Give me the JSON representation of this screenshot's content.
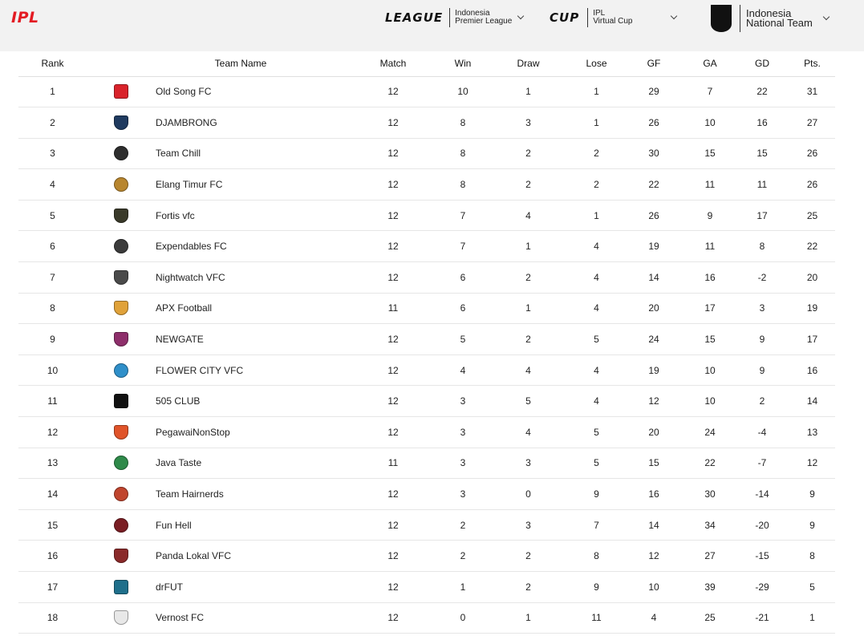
{
  "header": {
    "logo": "IPL",
    "league": {
      "word": "LEAGUE",
      "line1": "Indonesia",
      "line2": "Premier League"
    },
    "cup": {
      "word": "CUP",
      "line1": "IPL",
      "line2": "Virtual Cup"
    },
    "national": {
      "line1": "Indonesia",
      "line2": "National Team"
    }
  },
  "table": {
    "columns": [
      "Rank",
      "Team Name",
      "Match",
      "Win",
      "Draw",
      "Lose",
      "GF",
      "GA",
      "GD",
      "Pts."
    ],
    "rows": [
      {
        "rank": "1",
        "team": "Old Song FC",
        "match": "12",
        "win": "10",
        "draw": "1",
        "lose": "1",
        "gf": "29",
        "ga": "7",
        "gd": "22",
        "pts": "31",
        "crest_color": "#d9232b",
        "crest_shape": "sq"
      },
      {
        "rank": "2",
        "team": "DJAMBRONG",
        "match": "12",
        "win": "8",
        "draw": "3",
        "lose": "1",
        "gf": "26",
        "ga": "10",
        "gd": "16",
        "pts": "27",
        "crest_color": "#1f3a5f",
        "crest_shape": "shield"
      },
      {
        "rank": "3",
        "team": "Team Chill",
        "match": "12",
        "win": "8",
        "draw": "2",
        "lose": "2",
        "gf": "30",
        "ga": "15",
        "gd": "15",
        "pts": "26",
        "crest_color": "#2e2e2e",
        "crest_shape": "circle"
      },
      {
        "rank": "4",
        "team": "Elang Timur FC",
        "match": "12",
        "win": "8",
        "draw": "2",
        "lose": "2",
        "gf": "22",
        "ga": "11",
        "gd": "11",
        "pts": "26",
        "crest_color": "#b8862f",
        "crest_shape": "circle"
      },
      {
        "rank": "5",
        "team": "Fortis vfc",
        "match": "12",
        "win": "7",
        "draw": "4",
        "lose": "1",
        "gf": "26",
        "ga": "9",
        "gd": "17",
        "pts": "25",
        "crest_color": "#3a3a2a",
        "crest_shape": "shield"
      },
      {
        "rank": "6",
        "team": "Expendables FC",
        "match": "12",
        "win": "7",
        "draw": "1",
        "lose": "4",
        "gf": "19",
        "ga": "11",
        "gd": "8",
        "pts": "22",
        "crest_color": "#3b3b3b",
        "crest_shape": "circle"
      },
      {
        "rank": "7",
        "team": "Nightwatch VFC",
        "match": "12",
        "win": "6",
        "draw": "2",
        "lose": "4",
        "gf": "14",
        "ga": "16",
        "gd": "-2",
        "pts": "20",
        "crest_color": "#4a4a4a",
        "crest_shape": "shield"
      },
      {
        "rank": "8",
        "team": "APX Football",
        "match": "11",
        "win": "6",
        "draw": "1",
        "lose": "4",
        "gf": "20",
        "ga": "17",
        "gd": "3",
        "pts": "19",
        "crest_color": "#e0a23a",
        "crest_shape": "shield"
      },
      {
        "rank": "9",
        "team": "NEWGATE",
        "match": "12",
        "win": "5",
        "draw": "2",
        "lose": "5",
        "gf": "24",
        "ga": "15",
        "gd": "9",
        "pts": "17",
        "crest_color": "#8e2f6b",
        "crest_shape": "shield"
      },
      {
        "rank": "10",
        "team": "FLOWER CITY VFC",
        "match": "12",
        "win": "4",
        "draw": "4",
        "lose": "4",
        "gf": "19",
        "ga": "10",
        "gd": "9",
        "pts": "16",
        "crest_color": "#2f8fc9",
        "crest_shape": "circle"
      },
      {
        "rank": "11",
        "team": "505 CLUB",
        "match": "12",
        "win": "3",
        "draw": "5",
        "lose": "4",
        "gf": "12",
        "ga": "10",
        "gd": "2",
        "pts": "14",
        "crest_color": "#111111",
        "crest_shape": "sq"
      },
      {
        "rank": "12",
        "team": "PegawaiNonStop",
        "match": "12",
        "win": "3",
        "draw": "4",
        "lose": "5",
        "gf": "20",
        "ga": "24",
        "gd": "-4",
        "pts": "13",
        "crest_color": "#e0542a",
        "crest_shape": "shield"
      },
      {
        "rank": "13",
        "team": "Java Taste",
        "match": "11",
        "win": "3",
        "draw": "3",
        "lose": "5",
        "gf": "15",
        "ga": "22",
        "gd": "-7",
        "pts": "12",
        "crest_color": "#2f8a4a",
        "crest_shape": "circle"
      },
      {
        "rank": "14",
        "team": "Team Hairnerds",
        "match": "12",
        "win": "3",
        "draw": "0",
        "lose": "9",
        "gf": "16",
        "ga": "30",
        "gd": "-14",
        "pts": "9",
        "crest_color": "#c0452e",
        "crest_shape": "circle"
      },
      {
        "rank": "15",
        "team": "Fun Hell",
        "match": "12",
        "win": "2",
        "draw": "3",
        "lose": "7",
        "gf": "14",
        "ga": "34",
        "gd": "-20",
        "pts": "9",
        "crest_color": "#7a1e24",
        "crest_shape": "circle"
      },
      {
        "rank": "16",
        "team": "Panda Lokal VFC",
        "match": "12",
        "win": "2",
        "draw": "2",
        "lose": "8",
        "gf": "12",
        "ga": "27",
        "gd": "-15",
        "pts": "8",
        "crest_color": "#8a2a2a",
        "crest_shape": "shield"
      },
      {
        "rank": "17",
        "team": "drFUT",
        "match": "12",
        "win": "1",
        "draw": "2",
        "lose": "9",
        "gf": "10",
        "ga": "39",
        "gd": "-29",
        "pts": "5",
        "crest_color": "#1f6f8b",
        "crest_shape": "sq"
      },
      {
        "rank": "18",
        "team": "Vernost FC",
        "match": "12",
        "win": "0",
        "draw": "1",
        "lose": "11",
        "gf": "4",
        "ga": "25",
        "gd": "-21",
        "pts": "1",
        "crest_color": "#e8e8e8",
        "crest_shape": "shield"
      }
    ]
  }
}
